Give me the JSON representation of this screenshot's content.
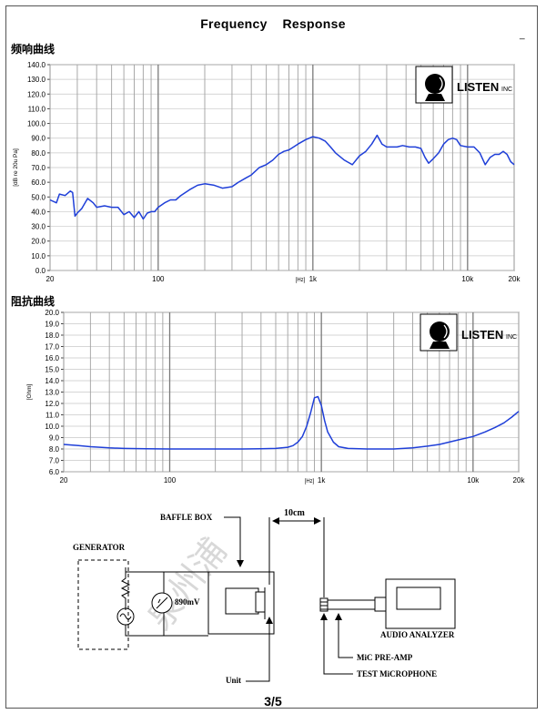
{
  "page": {
    "title_part1": "Frequency",
    "title_part2": "Response",
    "corner_mark": "_",
    "page_number": "3/5"
  },
  "logo": {
    "brand": "LISTEN",
    "suffix": "INC"
  },
  "chart_data": [
    {
      "type": "line",
      "section_title": "频响曲线",
      "ylabel": "[dB re 20u Pa]",
      "xlabel": "[Hz]",
      "xscale": "log",
      "xlim": [
        20,
        20000
      ],
      "ylim": [
        0,
        140
      ],
      "yticks": [
        "0.0",
        "10.0",
        "20.0",
        "30.0",
        "40.0",
        "50.0",
        "60.0",
        "70.0",
        "80.0",
        "90.0",
        "100.0",
        "110.0",
        "120.0",
        "130.0",
        "140.0"
      ],
      "xticks": [
        "20",
        "100",
        "1k",
        "10k",
        "20k"
      ],
      "grid": true,
      "series": [
        {
          "color": "#1f3fd8",
          "x": [
            20,
            22,
            23,
            25,
            27,
            28,
            29,
            30,
            32,
            35,
            38,
            40,
            45,
            50,
            55,
            60,
            65,
            70,
            75,
            80,
            85,
            90,
            95,
            100,
            110,
            120,
            130,
            140,
            160,
            180,
            200,
            230,
            260,
            300,
            330,
            370,
            400,
            450,
            500,
            550,
            600,
            650,
            700,
            750,
            800,
            900,
            1000,
            1100,
            1200,
            1300,
            1400,
            1600,
            1800,
            2000,
            2200,
            2400,
            2600,
            2800,
            3000,
            3200,
            3500,
            3800,
            4200,
            4600,
            5000,
            5300,
            5600,
            6000,
            6500,
            7000,
            7500,
            8000,
            8500,
            9000,
            10000,
            11000,
            12000,
            13000,
            14000,
            15000,
            16000,
            17000,
            18000,
            19000,
            20000
          ],
          "y": [
            48,
            46,
            52,
            51,
            54,
            53,
            37,
            39,
            42,
            49,
            46,
            43,
            44,
            43,
            43,
            38,
            40,
            36,
            40,
            35,
            39,
            40,
            40,
            43,
            46,
            48,
            48,
            51,
            55,
            58,
            59,
            58,
            56,
            57,
            60,
            63,
            65,
            70,
            72,
            75,
            79,
            81,
            82,
            84,
            86,
            89,
            91,
            90,
            88,
            84,
            80,
            75,
            72,
            78,
            81,
            86,
            92,
            86,
            84,
            84,
            84,
            85,
            84,
            84,
            83,
            77,
            73,
            76,
            80,
            86,
            89,
            90,
            89,
            85,
            84,
            84,
            80,
            72,
            77,
            79,
            79,
            81,
            79,
            74,
            72
          ]
        }
      ]
    },
    {
      "type": "line",
      "section_title": "阻抗曲线",
      "ylabel": "[Ohm]",
      "xlabel": "[Hz]",
      "xscale": "log",
      "xlim": [
        20,
        20000
      ],
      "ylim": [
        6,
        20
      ],
      "yticks": [
        "6.0",
        "7.0",
        "8.0",
        "9.0",
        "10.0",
        "11.0",
        "12.0",
        "13.0",
        "14.0",
        "15.0",
        "16.0",
        "17.0",
        "18.0",
        "19.0",
        "20.0"
      ],
      "xticks": [
        "20",
        "100",
        "1k",
        "10k",
        "20k"
      ],
      "grid": true,
      "series": [
        {
          "color": "#1f3fd8",
          "x": [
            20,
            25,
            30,
            40,
            50,
            70,
            100,
            150,
            200,
            300,
            400,
            500,
            600,
            650,
            700,
            750,
            800,
            850,
            900,
            950,
            1000,
            1050,
            1100,
            1200,
            1300,
            1500,
            2000,
            3000,
            4000,
            5000,
            6000,
            8000,
            10000,
            12000,
            14000,
            16000,
            18000,
            20000
          ],
          "y": [
            8.4,
            8.3,
            8.2,
            8.1,
            8.05,
            8.02,
            8.0,
            8.0,
            8.0,
            8.0,
            8.02,
            8.05,
            8.15,
            8.3,
            8.6,
            9.1,
            10.0,
            11.2,
            12.5,
            12.6,
            11.8,
            10.5,
            9.5,
            8.6,
            8.2,
            8.05,
            8.0,
            8.0,
            8.1,
            8.25,
            8.4,
            8.8,
            9.1,
            9.5,
            9.9,
            10.3,
            10.8,
            11.3
          ]
        }
      ]
    }
  ],
  "diagram": {
    "distance_label": "10cm",
    "baffle_box": "BAFFLE BOX",
    "generator": "GENERATOR",
    "voltage": "890mV",
    "unit": "Unit",
    "audio_analyzer": "AUDIO ANALYZER",
    "mic_preamp": "MiC PRE-AMP",
    "test_mic": "TEST MiCROPHONE"
  },
  "watermark": "泉州浦"
}
